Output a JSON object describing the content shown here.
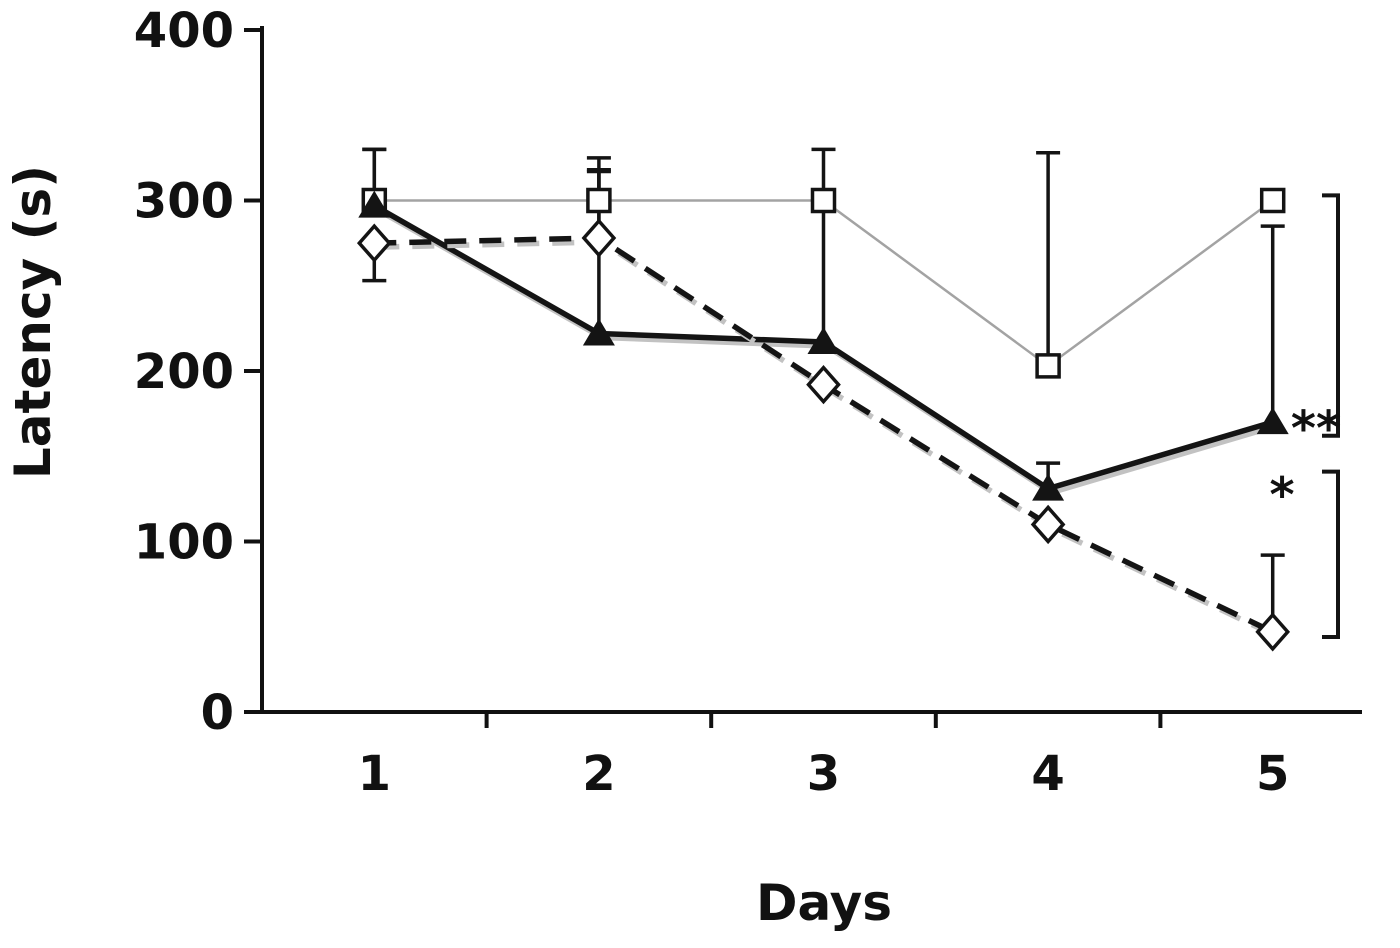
{
  "chart_data": {
    "type": "line",
    "title": "",
    "xlabel": "Days",
    "ylabel": "Latency (s)",
    "x": [
      1,
      2,
      3,
      4,
      5
    ],
    "x_ticklabels": [
      "1",
      "2",
      "3",
      "4",
      "5"
    ],
    "y_ticks": [
      0,
      100,
      200,
      300,
      400
    ],
    "y_ticklabels": [
      "0",
      "100",
      "200",
      "300",
      "400"
    ],
    "ylim": [
      0,
      400
    ],
    "grid": false,
    "legend": "none",
    "colors": {
      "axis": "#111111",
      "black": "#141414",
      "gray_line": "#a3a3a3",
      "shadow": "#c2c2c2"
    },
    "series": [
      {
        "name": "open squares",
        "marker": "square-open",
        "line_color": "#a3a3a3",
        "line_width": 2.5,
        "dash": null,
        "shadow": false,
        "values": [
          300,
          300,
          300,
          203,
          300
        ],
        "err_up": [
          30,
          25,
          30,
          125,
          0
        ],
        "err_down": [
          0,
          0,
          0,
          0,
          0
        ]
      },
      {
        "name": "filled triangles",
        "marker": "triangle-filled",
        "line_color": "#141414",
        "line_width": 5.5,
        "dash": null,
        "shadow": true,
        "values": [
          297,
          222,
          217,
          131,
          170
        ],
        "err_up": [
          33,
          95,
          85,
          15,
          115
        ],
        "err_down": [
          0,
          0,
          0,
          0,
          0
        ]
      },
      {
        "name": "open diamonds",
        "marker": "diamond-open",
        "line_color": "#141414",
        "line_width": 5.5,
        "dash": "22 13",
        "shadow": true,
        "values": [
          275,
          278,
          192,
          110,
          47
        ],
        "err_up": [
          0,
          40,
          0,
          0,
          45
        ],
        "err_down": [
          22,
          0,
          0,
          0,
          0
        ]
      }
    ],
    "brackets": [
      {
        "symbol": "**",
        "from": 303,
        "to": 162,
        "label_value": 166
      },
      {
        "symbol": "*",
        "from": 141,
        "to": 44,
        "label_value": 127
      }
    ]
  }
}
